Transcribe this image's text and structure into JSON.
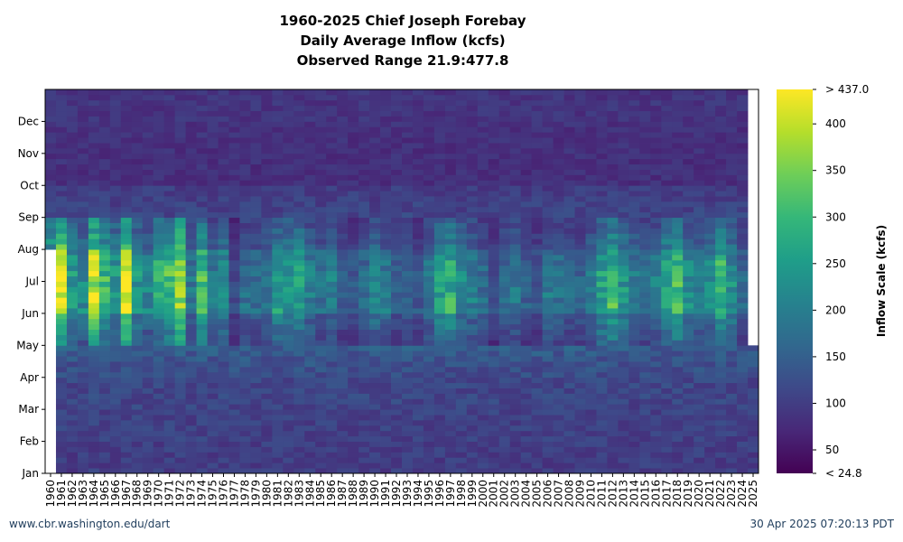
{
  "title": {
    "line1": "1960-2025 Chief Joseph Forebay",
    "line2": "Daily Average Inflow (kcfs)",
    "line3": "Observed Range 21.9:477.8"
  },
  "footer": {
    "left": "www.cbr.washington.edu/dart",
    "right": "30 Apr 2025 07:20:13 PDT"
  },
  "chart_data": {
    "type": "heatmap",
    "x_categories": [
      "1960",
      "1961",
      "1962",
      "1963",
      "1964",
      "1965",
      "1966",
      "1967",
      "1968",
      "1969",
      "1970",
      "1971",
      "1972",
      "1973",
      "1974",
      "1975",
      "1976",
      "1977",
      "1978",
      "1979",
      "1980",
      "1981",
      "1982",
      "1983",
      "1984",
      "1985",
      "1986",
      "1987",
      "1988",
      "1989",
      "1990",
      "1991",
      "1992",
      "1993",
      "1994",
      "1995",
      "1996",
      "1997",
      "1998",
      "1999",
      "2000",
      "2001",
      "2002",
      "2003",
      "2004",
      "2005",
      "2006",
      "2007",
      "2008",
      "2009",
      "2010",
      "2011",
      "2012",
      "2013",
      "2014",
      "2015",
      "2016",
      "2017",
      "2018",
      "2019",
      "2020",
      "2021",
      "2022",
      "2023",
      "2024",
      "2025"
    ],
    "y_categories": [
      "Jan",
      "Feb",
      "Mar",
      "Apr",
      "May",
      "Jun",
      "Jul",
      "Aug",
      "Sep",
      "Oct",
      "Nov",
      "Dec"
    ],
    "colorbar": {
      "label": "Inflow Scale (kcfs)",
      "ticks": [
        "< 24.8",
        "50",
        "100",
        "150",
        "200",
        "250",
        "300",
        "350",
        "400",
        "> 437.0"
      ],
      "min": 24.8,
      "max": 437.0,
      "colormap": "viridis",
      "colors": [
        "#440154",
        "#482878",
        "#3e4989",
        "#31688e",
        "#26828e",
        "#1f9e89",
        "#35b779",
        "#6ece58",
        "#b5de2b",
        "#fde725"
      ]
    },
    "year_peak_kcfs": [
      320,
      420,
      250,
      220,
      400,
      300,
      250,
      430,
      240,
      210,
      290,
      310,
      400,
      190,
      310,
      190,
      230,
      120,
      180,
      170,
      190,
      250,
      240,
      260,
      200,
      180,
      200,
      150,
      140,
      170,
      220,
      190,
      150,
      160,
      140,
      190,
      260,
      280,
      220,
      200,
      170,
      130,
      170,
      190,
      150,
      140,
      190,
      180,
      170,
      160,
      190,
      260,
      300,
      240,
      200,
      170,
      200,
      280,
      300,
      220,
      210,
      220,
      300,
      230,
      160,
      150
    ],
    "monthly_profile_kcfs": [
      85,
      90,
      95,
      105,
      150,
      250,
      250,
      180,
      95,
      70,
      70,
      75
    ],
    "missing": {
      "1960": "Jan-Jul",
      "2025": "May-Dec"
    }
  }
}
